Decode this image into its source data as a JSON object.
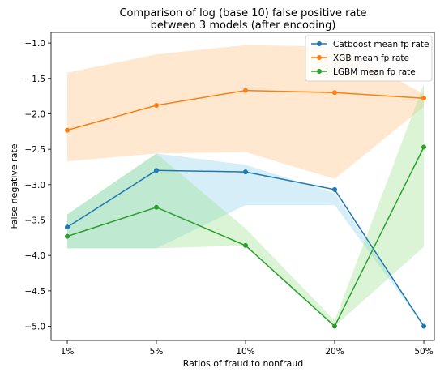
{
  "chart_data": {
    "type": "line",
    "title": "Comparison of log (base 10) false positive rate",
    "subtitle": "between 3 models (after encoding)",
    "xlabel": "Ratios of fraud to nonfraud",
    "ylabel": "False negative rate",
    "categories": [
      "1%",
      "5%",
      "10%",
      "20%",
      "50%"
    ],
    "ylim": [
      -5.2,
      -0.85
    ],
    "yticks": [
      -1.0,
      -1.5,
      -2.0,
      -2.5,
      -3.0,
      -3.5,
      -4.0,
      -4.5,
      -5.0
    ],
    "ytick_labels": [
      "−1.0",
      "−1.5",
      "−2.0",
      "−2.5",
      "−3.0",
      "−3.5",
      "−4.0",
      "−4.5",
      "−5.0"
    ],
    "grid": false,
    "legend_position": "top-right",
    "series": [
      {
        "name": "Catboost mean fp rate",
        "color": "#1f77b4",
        "band_color": "#87CEEB",
        "values": [
          -3.6,
          -2.8,
          -2.82,
          -3.07,
          -5.0
        ],
        "band_upper": [
          -3.42,
          -2.56,
          -2.72,
          -3.12,
          -5.0
        ],
        "band_lower": [
          -3.9,
          -3.9,
          -3.29,
          -3.29,
          -5.0
        ]
      },
      {
        "name": "XGB mean fp rate",
        "color": "#ff7f0e",
        "band_color": "#ffbb78",
        "values": [
          -2.23,
          -1.88,
          -1.67,
          -1.7,
          -1.78
        ],
        "band_upper": [
          -1.42,
          -1.16,
          -1.03,
          -1.05,
          -1.72
        ],
        "band_lower": [
          -2.67,
          -2.56,
          -2.54,
          -2.92,
          -1.9
        ]
      },
      {
        "name": "LGBM mean fp rate",
        "color": "#2ca02c",
        "band_color": "#98df8a",
        "values": [
          -3.73,
          -3.32,
          -3.86,
          -5.0,
          -2.47
        ],
        "band_upper": [
          -3.42,
          -2.56,
          -3.62,
          -4.92,
          -1.58
        ],
        "band_lower": [
          -3.9,
          -3.9,
          -3.86,
          -5.0,
          -3.88
        ]
      }
    ]
  }
}
